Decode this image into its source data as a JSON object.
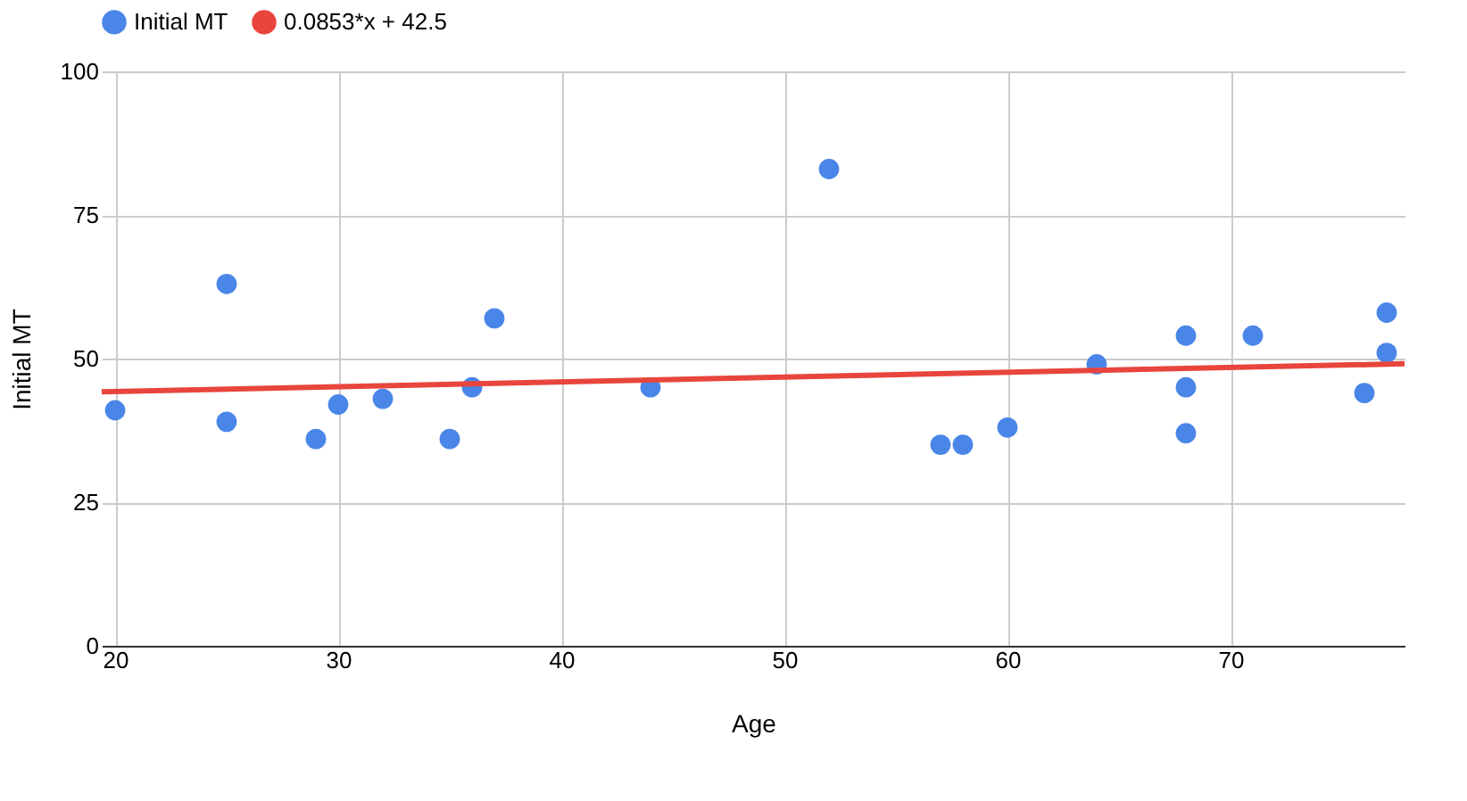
{
  "chart_data": {
    "type": "scatter",
    "xlabel": "Age",
    "ylabel": "Initial MT",
    "xlim": [
      19.4,
      77.8
    ],
    "xticks": [
      20,
      30,
      40,
      50,
      60,
      70
    ],
    "ylim": [
      0,
      100
    ],
    "yticks": [
      0,
      25,
      50,
      75,
      100
    ],
    "grid": true,
    "legend": "top",
    "marker": "circle",
    "series": [
      {
        "name": "Initial MT",
        "color": "#4a86e8",
        "x": [
          20,
          25,
          25,
          29,
          30,
          32,
          35,
          36,
          37,
          44,
          52,
          57,
          58,
          60,
          64,
          68,
          68,
          68,
          71,
          76,
          77,
          77
        ],
        "values": [
          41,
          63,
          39,
          36,
          42,
          43,
          36,
          45,
          57,
          45,
          83,
          35,
          35,
          38,
          49,
          54,
          45,
          37,
          54,
          44,
          58,
          51
        ]
      },
      {
        "name": "0.0853*x + 42.5",
        "type": "line",
        "marker": "none",
        "color": "#e8453c",
        "x": [
          19.4,
          77.8
        ],
        "values": [
          44.2,
          49.1
        ]
      }
    ]
  }
}
